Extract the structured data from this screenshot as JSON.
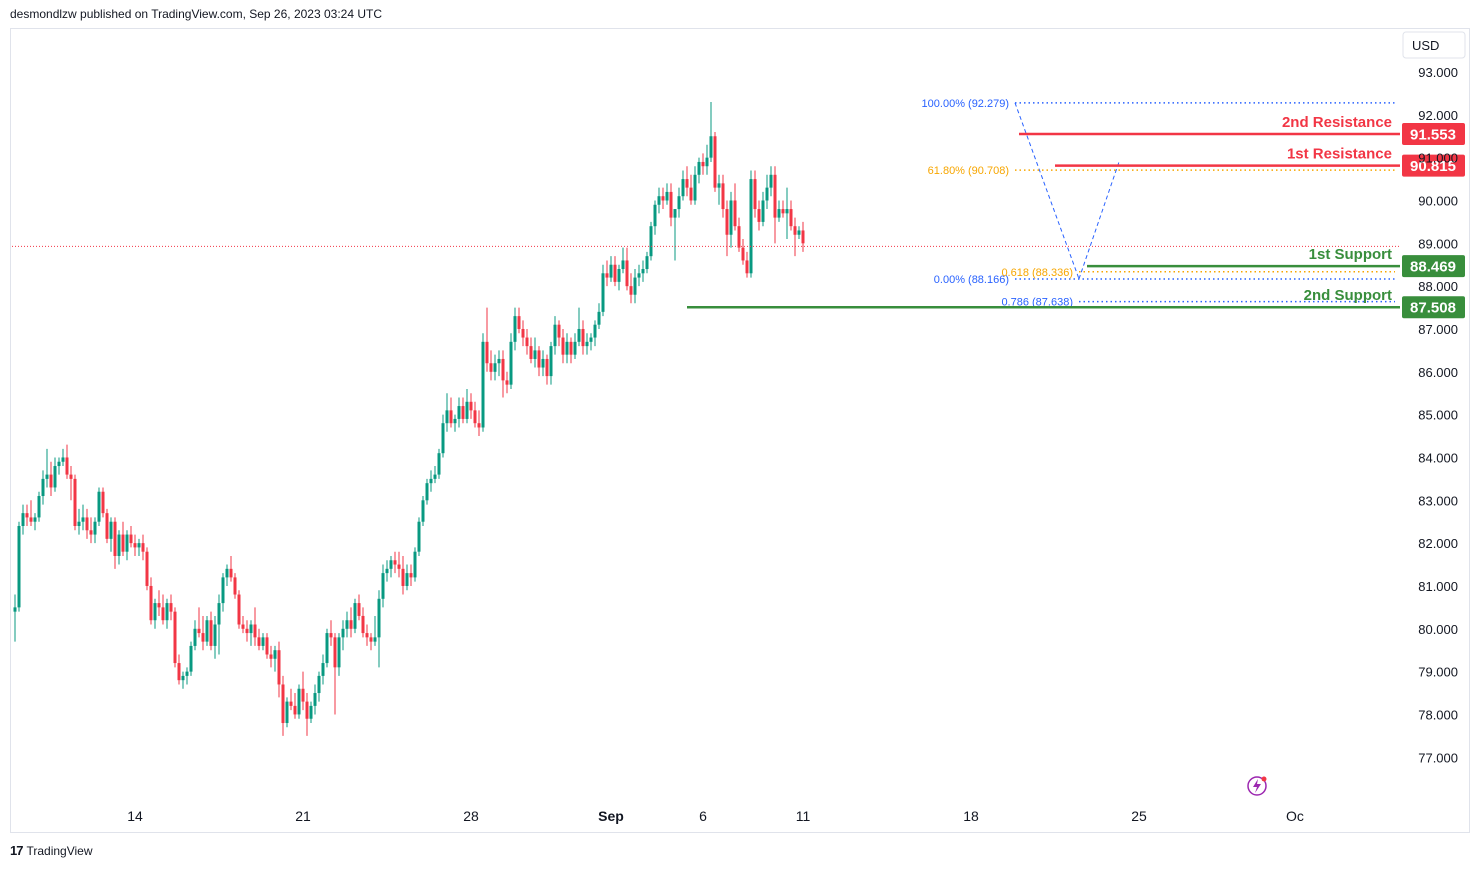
{
  "header": {
    "publisher": "desmondlzw published on TradingView.com, Sep 26, 2023 03:24 UTC"
  },
  "footer": {
    "logo_label": "TradingView"
  },
  "colors": {
    "up": "#089981",
    "down": "#f23645",
    "resistance": "#f23645",
    "support": "#388e3c",
    "fib_blue": "#2962ff",
    "fib_orange": "#f7a600",
    "price_line": "#f23645"
  },
  "chart_data": {
    "type": "candlestick",
    "currency": "USD",
    "ylim": [
      76.0,
      93.7
    ],
    "y_ticks": [
      "77.000",
      "78.000",
      "79.000",
      "80.000",
      "81.000",
      "82.000",
      "83.000",
      "84.000",
      "85.000",
      "86.000",
      "87.000",
      "88.000",
      "89.000",
      "90.000",
      "91.000",
      "92.000",
      "93.000"
    ],
    "x_ticks": [
      {
        "label": "14",
        "index": 30
      },
      {
        "label": "21",
        "index": 72
      },
      {
        "label": "28",
        "index": 114
      },
      {
        "label": "Sep",
        "index": 149
      },
      {
        "label": "6",
        "index": 172
      },
      {
        "label": "11",
        "index": 197
      },
      {
        "label": "18",
        "index": 239
      },
      {
        "label": "25",
        "index": 281
      },
      {
        "label": "Oc",
        "index": 320
      }
    ],
    "last_price": 88.93,
    "levels": [
      {
        "label": "2nd Resistance",
        "value": 91.553,
        "value_label": "91.553",
        "kind": "resistance",
        "start_index": 251
      },
      {
        "label": "1st Resistance",
        "value": 90.815,
        "value_label": "90.815",
        "kind": "resistance",
        "start_index": 260
      },
      {
        "label": "1st Support",
        "value": 88.469,
        "value_label": "88.469",
        "kind": "support",
        "start_index": 268
      },
      {
        "label": "2nd Support",
        "value": 87.508,
        "value_label": "87.508",
        "kind": "support",
        "start_index": 168
      }
    ],
    "fib_levels": [
      {
        "label": "100.00% (92.279)",
        "value": 92.279,
        "color": "blue",
        "start_index": 250
      },
      {
        "label": "61.80% (90.708)",
        "value": 90.708,
        "color": "orange",
        "start_index": 250
      },
      {
        "label": "0.00% (88.166)",
        "value": 88.166,
        "color": "blue",
        "start_index": 250
      },
      {
        "label": "0.618 (88.336)",
        "value": 88.336,
        "color": "orange",
        "start_index": 266
      },
      {
        "label": "0.786 (87.638)",
        "value": 87.638,
        "color": "blue",
        "start_index": 266
      }
    ],
    "fib_paths": [
      {
        "points": [
          [
            250,
            92.28
          ],
          [
            266,
            88.17
          ]
        ]
      },
      {
        "points": [
          [
            266,
            88.17
          ],
          [
            276,
            90.9
          ]
        ]
      }
    ],
    "ohlc": [
      [
        80.4,
        80.8,
        79.7,
        80.5
      ],
      [
        80.5,
        82.5,
        80.4,
        82.4
      ],
      [
        82.4,
        82.9,
        82.2,
        82.7
      ],
      [
        82.7,
        82.9,
        82.4,
        82.6
      ],
      [
        82.6,
        83.0,
        82.4,
        82.5
      ],
      [
        82.5,
        82.7,
        82.3,
        82.6
      ],
      [
        82.6,
        83.2,
        82.5,
        83.1
      ],
      [
        83.1,
        83.7,
        82.9,
        83.5
      ],
      [
        83.5,
        84.2,
        83.3,
        83.6
      ],
      [
        83.6,
        83.9,
        83.1,
        83.3
      ],
      [
        83.3,
        84.0,
        83.2,
        83.8
      ],
      [
        83.8,
        84.0,
        83.6,
        83.9
      ],
      [
        83.9,
        84.2,
        83.8,
        84.0
      ],
      [
        84.0,
        84.3,
        83.5,
        83.6
      ],
      [
        83.6,
        83.8,
        83.0,
        83.5
      ],
      [
        83.5,
        83.6,
        82.3,
        82.4
      ],
      [
        82.4,
        82.8,
        82.2,
        82.5
      ],
      [
        82.5,
        82.9,
        82.3,
        82.6
      ],
      [
        82.6,
        82.8,
        82.1,
        82.3
      ],
      [
        82.3,
        82.6,
        82.0,
        82.2
      ],
      [
        82.2,
        82.6,
        82.0,
        82.5
      ],
      [
        82.5,
        83.3,
        82.4,
        83.2
      ],
      [
        83.2,
        83.3,
        82.6,
        82.7
      ],
      [
        82.7,
        82.8,
        82.0,
        82.1
      ],
      [
        82.1,
        82.6,
        81.8,
        82.5
      ],
      [
        82.5,
        82.6,
        81.4,
        81.7
      ],
      [
        81.7,
        82.3,
        81.5,
        82.2
      ],
      [
        82.2,
        82.5,
        81.7,
        81.8
      ],
      [
        81.8,
        82.3,
        81.6,
        82.2
      ],
      [
        82.2,
        82.4,
        81.9,
        82.0
      ],
      [
        82.0,
        82.2,
        81.7,
        81.9
      ],
      [
        81.9,
        82.1,
        81.7,
        82.0
      ],
      [
        82.0,
        82.2,
        81.6,
        81.8
      ],
      [
        81.8,
        81.9,
        80.9,
        81.0
      ],
      [
        81.0,
        81.2,
        80.1,
        80.2
      ],
      [
        80.2,
        80.7,
        80.0,
        80.6
      ],
      [
        80.6,
        80.9,
        80.3,
        80.5
      ],
      [
        80.5,
        80.8,
        80.1,
        80.2
      ],
      [
        80.2,
        80.7,
        80.0,
        80.6
      ],
      [
        80.6,
        80.8,
        80.2,
        80.4
      ],
      [
        80.4,
        80.5,
        79.1,
        79.2
      ],
      [
        79.2,
        79.4,
        78.7,
        78.8
      ],
      [
        78.8,
        79.0,
        78.6,
        78.9
      ],
      [
        78.9,
        79.1,
        78.7,
        79.0
      ],
      [
        79.0,
        79.7,
        78.9,
        79.6
      ],
      [
        79.6,
        80.2,
        79.5,
        80.0
      ],
      [
        80.0,
        80.5,
        79.8,
        79.9
      ],
      [
        79.9,
        80.3,
        79.5,
        79.7
      ],
      [
        79.7,
        80.3,
        79.6,
        80.2
      ],
      [
        80.2,
        80.4,
        79.5,
        79.6
      ],
      [
        79.6,
        80.3,
        79.3,
        80.1
      ],
      [
        80.1,
        80.8,
        79.4,
        80.6
      ],
      [
        80.6,
        81.3,
        80.4,
        81.2
      ],
      [
        81.2,
        81.5,
        81.0,
        81.4
      ],
      [
        81.4,
        81.7,
        81.1,
        81.2
      ],
      [
        81.2,
        81.3,
        80.7,
        80.8
      ],
      [
        80.8,
        80.9,
        80.0,
        80.1
      ],
      [
        80.1,
        80.3,
        79.9,
        80.0
      ],
      [
        80.0,
        80.2,
        79.7,
        79.9
      ],
      [
        79.9,
        80.2,
        79.6,
        80.1
      ],
      [
        80.1,
        80.5,
        79.6,
        79.8
      ],
      [
        79.8,
        80.0,
        79.5,
        79.6
      ],
      [
        79.6,
        79.9,
        79.5,
        79.8
      ],
      [
        79.8,
        79.9,
        79.3,
        79.4
      ],
      [
        79.4,
        79.6,
        79.1,
        79.3
      ],
      [
        79.3,
        79.6,
        79.0,
        79.5
      ],
      [
        79.5,
        79.7,
        78.4,
        78.7
      ],
      [
        78.7,
        78.9,
        77.5,
        77.8
      ],
      [
        77.8,
        78.4,
        77.7,
        78.3
      ],
      [
        78.3,
        78.6,
        78.1,
        78.2
      ],
      [
        78.2,
        78.5,
        77.9,
        78.0
      ],
      [
        78.0,
        78.7,
        77.9,
        78.6
      ],
      [
        78.6,
        79.0,
        78.1,
        78.3
      ],
      [
        78.3,
        78.5,
        77.5,
        77.9
      ],
      [
        77.9,
        78.3,
        77.8,
        78.2
      ],
      [
        78.2,
        78.7,
        78.0,
        78.5
      ],
      [
        78.5,
        79.0,
        78.3,
        78.9
      ],
      [
        78.9,
        79.4,
        78.7,
        79.2
      ],
      [
        79.2,
        80.0,
        79.1,
        79.9
      ],
      [
        79.9,
        80.2,
        79.6,
        79.8
      ],
      [
        79.8,
        79.9,
        78.0,
        79.1
      ],
      [
        79.1,
        79.9,
        78.9,
        79.8
      ],
      [
        79.8,
        80.2,
        79.5,
        80.0
      ],
      [
        80.0,
        80.4,
        79.8,
        80.2
      ],
      [
        80.2,
        80.5,
        79.8,
        80.0
      ],
      [
        80.0,
        80.7,
        79.9,
        80.6
      ],
      [
        80.6,
        80.8,
        80.2,
        80.3
      ],
      [
        80.3,
        80.5,
        79.8,
        79.9
      ],
      [
        79.9,
        80.1,
        79.6,
        79.8
      ],
      [
        79.8,
        79.9,
        79.5,
        79.7
      ],
      [
        79.7,
        80.3,
        79.6,
        79.8
      ],
      [
        79.8,
        80.9,
        79.1,
        80.7
      ],
      [
        80.7,
        81.5,
        80.5,
        81.3
      ],
      [
        81.3,
        81.6,
        81.1,
        81.4
      ],
      [
        81.4,
        81.7,
        81.2,
        81.6
      ],
      [
        81.6,
        81.8,
        81.3,
        81.5
      ],
      [
        81.5,
        81.8,
        81.2,
        81.4
      ],
      [
        81.4,
        81.7,
        80.8,
        81.0
      ],
      [
        81.0,
        81.5,
        80.9,
        81.3
      ],
      [
        81.3,
        81.5,
        81.0,
        81.2
      ],
      [
        81.2,
        81.9,
        81.1,
        81.8
      ],
      [
        81.8,
        82.6,
        81.7,
        82.5
      ],
      [
        82.5,
        83.1,
        82.4,
        83.0
      ],
      [
        83.0,
        83.5,
        82.9,
        83.4
      ],
      [
        83.4,
        83.7,
        83.2,
        83.5
      ],
      [
        83.5,
        83.8,
        83.4,
        83.6
      ],
      [
        83.6,
        84.2,
        83.5,
        84.1
      ],
      [
        84.1,
        85.0,
        84.0,
        84.8
      ],
      [
        84.8,
        85.5,
        84.6,
        85.1
      ],
      [
        85.1,
        85.4,
        84.7,
        84.8
      ],
      [
        84.8,
        85.0,
        84.6,
        84.9
      ],
      [
        84.9,
        85.4,
        84.7,
        85.2
      ],
      [
        85.2,
        85.4,
        84.8,
        84.9
      ],
      [
        84.9,
        85.6,
        84.8,
        85.3
      ],
      [
        85.3,
        85.5,
        84.9,
        85.1
      ],
      [
        85.1,
        85.3,
        84.7,
        84.8
      ],
      [
        84.8,
        85.1,
        84.5,
        84.7
      ],
      [
        84.7,
        86.9,
        84.6,
        86.7
      ],
      [
        86.7,
        87.5,
        86.0,
        86.2
      ],
      [
        86.2,
        86.5,
        85.8,
        86.0
      ],
      [
        86.0,
        86.4,
        85.8,
        86.2
      ],
      [
        86.2,
        86.5,
        85.9,
        86.3
      ],
      [
        86.3,
        86.5,
        85.4,
        85.8
      ],
      [
        85.8,
        86.0,
        85.5,
        85.7
      ],
      [
        85.7,
        86.9,
        85.6,
        86.7
      ],
      [
        86.7,
        87.5,
        86.5,
        87.3
      ],
      [
        87.3,
        87.5,
        86.9,
        87.0
      ],
      [
        87.0,
        87.2,
        86.6,
        86.8
      ],
      [
        86.8,
        87.0,
        86.4,
        86.6
      ],
      [
        86.6,
        86.8,
        86.2,
        86.3
      ],
      [
        86.3,
        86.8,
        86.1,
        86.5
      ],
      [
        86.5,
        86.6,
        85.9,
        86.1
      ],
      [
        86.1,
        86.5,
        85.9,
        86.3
      ],
      [
        86.3,
        86.4,
        85.7,
        85.9
      ],
      [
        85.9,
        86.7,
        85.7,
        86.6
      ],
      [
        86.6,
        87.3,
        86.4,
        87.1
      ],
      [
        87.1,
        87.2,
        86.6,
        86.8
      ],
      [
        86.8,
        87.0,
        86.2,
        86.4
      ],
      [
        86.4,
        86.9,
        86.2,
        86.7
      ],
      [
        86.7,
        86.8,
        86.2,
        86.4
      ],
      [
        86.4,
        86.9,
        86.3,
        86.7
      ],
      [
        86.7,
        87.5,
        86.6,
        87.0
      ],
      [
        87.0,
        87.2,
        86.4,
        86.6
      ],
      [
        86.6,
        86.9,
        86.4,
        86.7
      ],
      [
        86.7,
        86.9,
        86.5,
        86.8
      ],
      [
        86.8,
        87.2,
        86.6,
        87.1
      ],
      [
        87.1,
        87.6,
        87.0,
        87.4
      ],
      [
        87.4,
        88.5,
        87.3,
        88.3
      ],
      [
        88.3,
        88.6,
        88.0,
        88.2
      ],
      [
        88.2,
        88.7,
        88.1,
        88.5
      ],
      [
        88.5,
        88.7,
        88.0,
        88.1
      ],
      [
        88.1,
        88.5,
        87.9,
        88.4
      ],
      [
        88.4,
        88.9,
        88.3,
        88.6
      ],
      [
        88.6,
        88.9,
        87.9,
        88.0
      ],
      [
        88.0,
        88.3,
        87.6,
        87.8
      ],
      [
        87.8,
        88.4,
        87.6,
        88.2
      ],
      [
        88.2,
        88.5,
        88.0,
        88.3
      ],
      [
        88.3,
        88.6,
        88.1,
        88.4
      ],
      [
        88.4,
        88.8,
        88.3,
        88.7
      ],
      [
        88.7,
        89.5,
        88.6,
        89.4
      ],
      [
        89.4,
        90.0,
        89.2,
        89.9
      ],
      [
        89.9,
        90.3,
        89.7,
        90.1
      ],
      [
        90.1,
        90.3,
        89.8,
        90.0
      ],
      [
        90.0,
        90.4,
        89.9,
        90.2
      ],
      [
        90.2,
        90.4,
        89.4,
        89.6
      ],
      [
        89.6,
        89.8,
        88.6,
        89.8
      ],
      [
        89.8,
        90.3,
        89.6,
        90.1
      ],
      [
        90.1,
        90.7,
        90.0,
        90.5
      ],
      [
        90.5,
        90.8,
        90.1,
        90.3
      ],
      [
        90.3,
        90.6,
        89.9,
        90.0
      ],
      [
        90.0,
        90.8,
        89.9,
        90.6
      ],
      [
        90.6,
        91.0,
        90.4,
        90.9
      ],
      [
        90.9,
        91.1,
        90.6,
        90.8
      ],
      [
        90.8,
        91.3,
        90.6,
        91.0
      ],
      [
        91.0,
        92.3,
        90.9,
        91.5
      ],
      [
        91.5,
        91.6,
        90.2,
        90.3
      ],
      [
        90.3,
        90.6,
        89.9,
        90.4
      ],
      [
        90.4,
        90.6,
        89.6,
        89.8
      ],
      [
        89.8,
        90.0,
        88.7,
        89.2
      ],
      [
        89.2,
        90.2,
        88.9,
        90.0
      ],
      [
        90.0,
        90.4,
        89.3,
        89.4
      ],
      [
        89.4,
        89.6,
        88.8,
        88.9
      ],
      [
        88.9,
        89.1,
        88.5,
        88.6
      ],
      [
        88.6,
        88.8,
        88.2,
        88.3
      ],
      [
        88.3,
        90.7,
        88.2,
        90.5
      ],
      [
        90.5,
        90.7,
        89.6,
        89.8
      ],
      [
        89.8,
        90.0,
        89.3,
        89.5
      ],
      [
        89.5,
        90.2,
        89.4,
        90.0
      ],
      [
        90.0,
        90.6,
        89.8,
        90.3
      ],
      [
        90.3,
        90.8,
        90.1,
        90.6
      ],
      [
        90.6,
        90.8,
        89.0,
        89.6
      ],
      [
        89.6,
        90.0,
        89.5,
        89.8
      ],
      [
        89.8,
        90.0,
        89.6,
        89.7
      ],
      [
        89.7,
        90.3,
        89.1,
        89.8
      ],
      [
        89.8,
        90.0,
        89.3,
        89.4
      ],
      [
        89.4,
        89.6,
        88.7,
        89.2
      ],
      [
        89.2,
        89.4,
        89.1,
        89.3
      ],
      [
        89.3,
        89.5,
        88.8,
        89.0
      ]
    ]
  }
}
